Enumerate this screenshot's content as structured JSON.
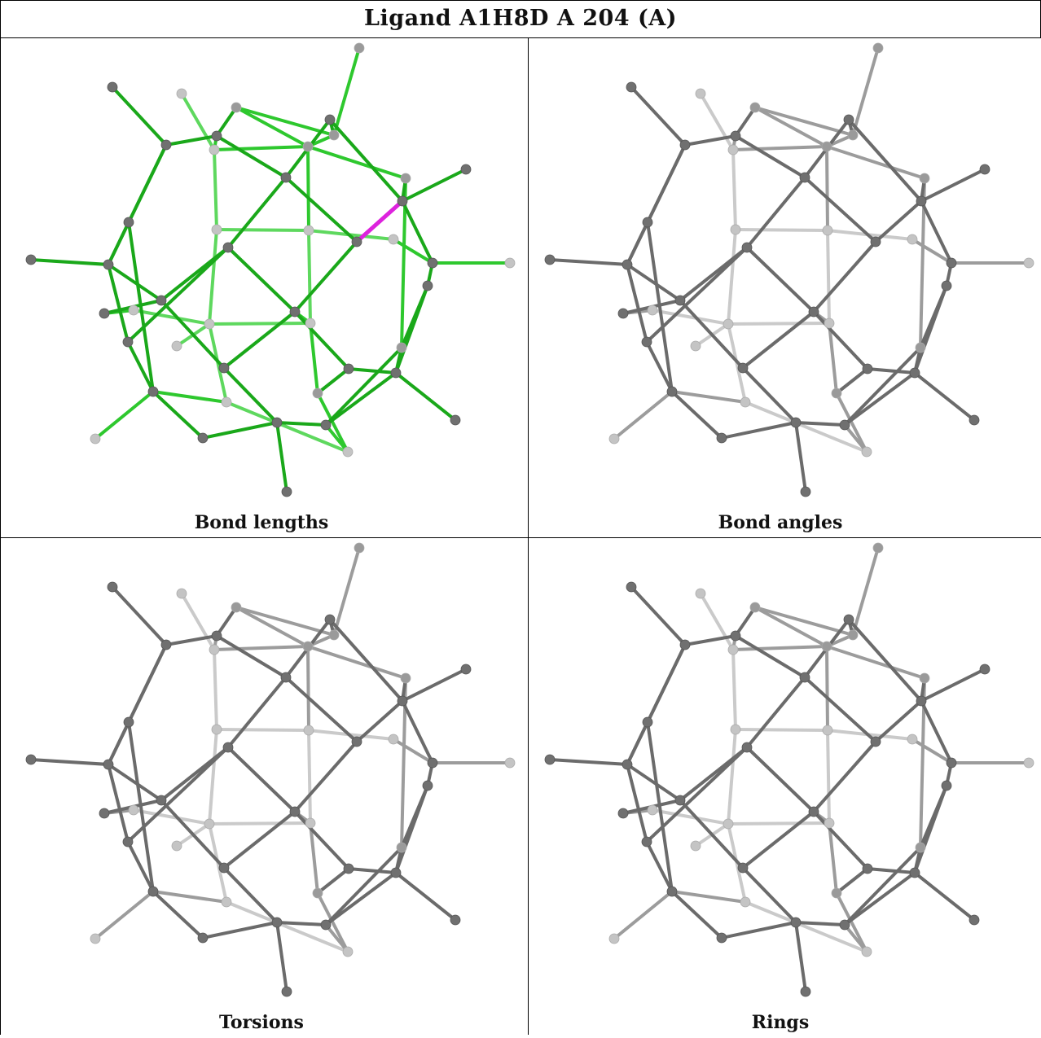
{
  "title": "Ligand A1H8D A 204 (A)",
  "panels": [
    {
      "id": "bond-lengths",
      "caption": "Bond lengths",
      "mode": "green-highlight"
    },
    {
      "id": "bond-angles",
      "caption": "Bond angles",
      "mode": "grey"
    },
    {
      "id": "torsions",
      "caption": "Torsions",
      "mode": "grey"
    },
    {
      "id": "rings",
      "caption": "Rings",
      "mode": "grey"
    }
  ],
  "colors": {
    "border": "#000000",
    "bond_near": "#6b6b6b",
    "bond_mid": "#9c9c9c",
    "bond_far": "#cacaca",
    "atom_near": "#707070",
    "atom_far": "#c4c4c4",
    "highlight_bond": "#dd22dd",
    "green_dark": "#1aa81a",
    "green_mid": "#2ec82e",
    "green_light": "#5ed85e"
  }
}
